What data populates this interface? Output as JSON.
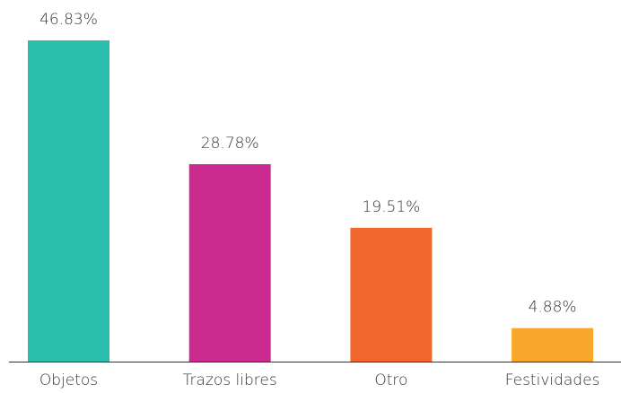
{
  "chart_data": {
    "type": "bar",
    "categories": [
      "Objetos",
      "Trazos libres",
      "Otro",
      "Festividades"
    ],
    "values": [
      46.83,
      28.78,
      19.51,
      4.88
    ],
    "value_labels": [
      "46.83%",
      "28.78%",
      "19.51%",
      "4.88%"
    ],
    "colors": [
      "#2abfad",
      "#cb2a8f",
      "#f2672d",
      "#f9a72b"
    ],
    "grid": false
  }
}
